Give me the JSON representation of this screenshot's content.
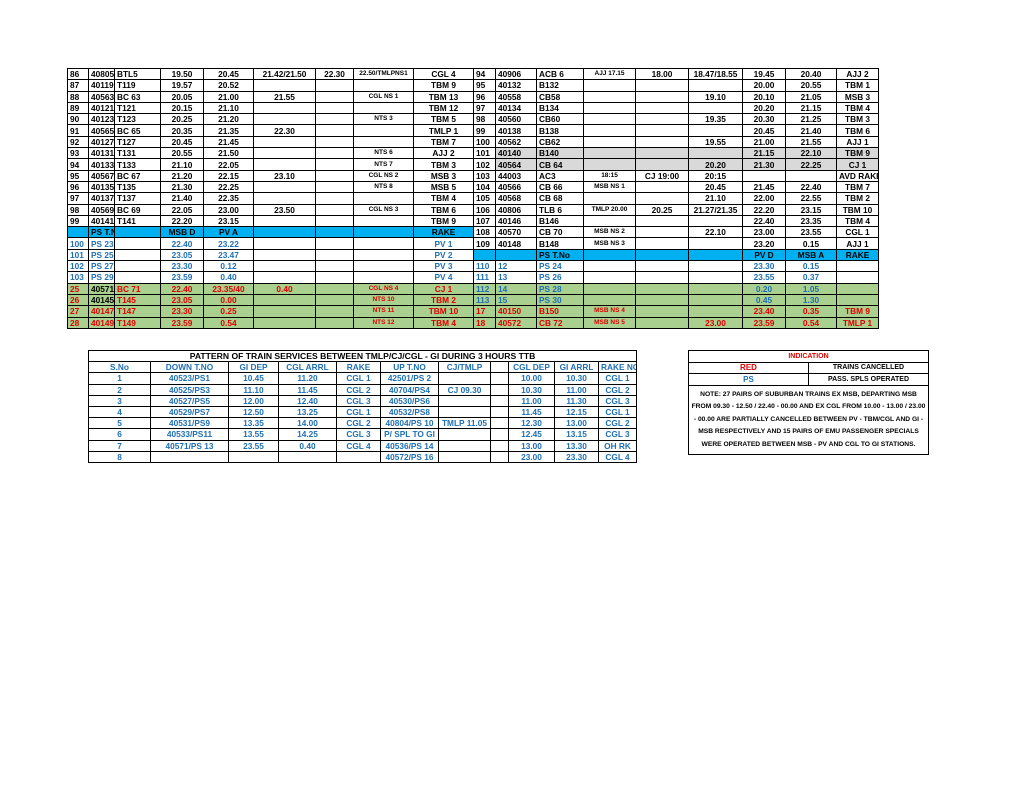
{
  "main_table": {
    "rows": [
      [
        "86",
        "40805",
        "BTL5",
        "19.50",
        "20.45",
        "21.42/21.50",
        "22.30",
        "22.50/TMLPNS1",
        "CGL 4",
        "94",
        "40906",
        "ACB 6",
        "AJJ 17.15",
        "18.00",
        "18.47/18.55",
        "19.45",
        "20.40",
        "AJJ 2"
      ],
      [
        "87",
        "40119",
        "T119",
        "19.57",
        "20.52",
        null,
        null,
        null,
        "TBM 9",
        "95",
        "40132",
        "B132",
        null,
        null,
        null,
        "20.00",
        "20.55",
        "TBM 1"
      ],
      [
        "88",
        "40563",
        "BC 63",
        "20.05",
        "21.00",
        "21.55",
        null,
        "CGL NS 1",
        "TBM 13",
        "96",
        "40558",
        "CB58",
        null,
        null,
        "19.10",
        "20.10",
        "21.05",
        "MSB 3"
      ],
      [
        "89",
        "40121",
        "T121",
        "20.15",
        "21.10",
        null,
        null,
        null,
        "TBM 12",
        "97",
        "40134",
        "B134",
        null,
        null,
        null,
        "20.20",
        "21.15",
        "TBM 4"
      ],
      [
        "90",
        "40123",
        "T123",
        "20.25",
        "21.20",
        null,
        null,
        "NTS 3",
        "TBM 5",
        "98",
        "40560",
        "CB60",
        null,
        null,
        "19.35",
        "20.30",
        "21.25",
        "TBM 3"
      ],
      [
        "91",
        "40565",
        "BC 65",
        "20.35",
        "21.35",
        "22.30",
        null,
        null,
        "TMLP 1",
        "99",
        "40138",
        "B138",
        null,
        null,
        null,
        "20.45",
        "21.40",
        "TBM 6"
      ],
      [
        "92",
        "40127",
        "T127",
        "20.45",
        "21.45",
        null,
        null,
        null,
        "TBM 7",
        "100",
        "40562",
        "CB62",
        null,
        null,
        "19.55",
        "21.00",
        "21.55",
        "AJJ 1"
      ],
      [
        "93",
        "40131",
        "T131",
        "20.55",
        "21.50",
        null,
        null,
        "NTS 6",
        "AJJ 2",
        "101",
        "40140",
        "B140",
        null,
        null,
        null,
        "21.15",
        "22.10",
        "TBM 9"
      ],
      [
        "94",
        "40133",
        "T133",
        "21.10",
        "22.05",
        null,
        null,
        "NTS 7",
        "TBM 3",
        "102",
        "40564",
        "CB 64",
        null,
        null,
        "20.20",
        "21.30",
        "22.25",
        "CJ 1"
      ],
      [
        "95",
        "40567",
        "BC 67",
        "21.20",
        "22.15",
        "23.10",
        null,
        "CGL NS 2",
        "MSB 3",
        "103",
        "44003",
        "AC3",
        "18:15",
        "CJ 19:00",
        "20:15",
        null,
        null,
        "AVD RAKE"
      ],
      [
        "96",
        "40135",
        "T135",
        "21.30",
        "22.25",
        null,
        null,
        "NTS 8",
        "MSB 5",
        "104",
        "40566",
        "CB 66",
        "MSB NS 1",
        null,
        "20.45",
        "21.45",
        "22.40",
        "TBM 7"
      ],
      [
        "97",
        "40137",
        "T137",
        "21.40",
        "22.35",
        null,
        null,
        null,
        "TBM 4",
        "105",
        "40568",
        "CB 68",
        null,
        null,
        "21.10",
        "22.00",
        "22.55",
        "TBM 2"
      ],
      [
        "98",
        "40569",
        "BC 69",
        "22.05",
        "23.00",
        "23.50",
        null,
        "CGL NS 3",
        "TBM 6",
        "106",
        "40806",
        "TLB 6",
        "TMLP 20.00",
        "20.25",
        "21.27/21.35",
        "22.20",
        "23.15",
        "TBM 10"
      ],
      [
        "99",
        "40141",
        "T141",
        "22.20",
        "23.15",
        null,
        null,
        null,
        "TBM 9",
        "107",
        "40146",
        "B146",
        null,
        null,
        null,
        "22.40",
        "23.35",
        "TBM 4"
      ],
      [
        null,
        "PS T.No",
        null,
        "MSB D",
        "PV A",
        null,
        null,
        null,
        "RAKE",
        "108",
        "40570",
        "CB 70",
        "MSB NS 2",
        null,
        "22.10",
        "23.00",
        "23.55",
        "CGL 1"
      ],
      [
        "100",
        "PS 23",
        null,
        "22.40",
        "23.22",
        null,
        null,
        null,
        "PV 1",
        "109",
        "40148",
        "B148",
        "MSB NS 3",
        null,
        null,
        "23.20",
        "0.15",
        "AJJ 1"
      ],
      [
        "101",
        "PS 25",
        null,
        "23.05",
        "23.47",
        null,
        null,
        null,
        "PV 2",
        null,
        null,
        "PS T.No",
        null,
        null,
        null,
        "PV  D",
        "MSB A",
        "RAKE"
      ],
      [
        "102",
        "PS 27",
        null,
        "23.30",
        "0.12",
        null,
        null,
        null,
        "PV 3",
        "110",
        "12",
        "PS 24",
        null,
        null,
        null,
        "23.30",
        "0.15",
        null
      ],
      [
        "103",
        "PS 29",
        null,
        "23.59",
        "0.40",
        null,
        null,
        null,
        "PV 4",
        "111",
        "13",
        "PS 26",
        null,
        null,
        null,
        "23.55",
        "0.37",
        null
      ],
      [
        "25",
        "40571",
        "BC 71",
        "22.40",
        "23.35/40",
        "0.40",
        null,
        "CGL NS 4",
        "CJ 1",
        "112",
        "14",
        "PS 28",
        null,
        null,
        null,
        "0.20",
        "1.05",
        null
      ],
      [
        "26",
        "40145",
        "T145",
        "23.05",
        "0.00",
        null,
        null,
        "NTS 10",
        "TBM 2",
        "113",
        "15",
        "PS 30",
        null,
        null,
        null,
        "0.45",
        "1.30",
        null
      ],
      [
        "27",
        "40147",
        "T147",
        "23.30",
        "0.25",
        null,
        null,
        "NTS 11",
        "TBM 10",
        "17",
        "40150",
        "B150",
        "MSB NS 4",
        null,
        null,
        "23.40",
        "0.35",
        "TBM 9"
      ],
      [
        "28",
        "40149",
        "T149",
        "23.59",
        "0.54",
        null,
        null,
        "NTS 12",
        "TBM 4",
        "18",
        "40572",
        "CB 72",
        "MSB NS 5",
        null,
        "23.00",
        "23.59",
        "0.54",
        "TMLP 1"
      ]
    ]
  },
  "pattern_table": {
    "title": "PATTERN OF TRAIN SERVICES BETWEEN TMLP/CJ/CGL - GI DURING 3 HOURS TTB",
    "header": [
      "S.No",
      "DOWN T.NO",
      "GI DEP",
      "CGL ARRL",
      "RAKE",
      "UP T.NO",
      "CJ/TMLP",
      null,
      "CGL DEP",
      "GI ARRL",
      "RAKE NO"
    ],
    "rows": [
      [
        "1",
        "40523/PS1",
        "10.45",
        "11.20",
        "CGL 1",
        "42501/PS 2",
        null,
        null,
        "10.00",
        "10.30",
        "CGL 1"
      ],
      [
        "2",
        "40525/PS3",
        "11.10",
        "11.45",
        "CGL 2",
        "40704/PS4",
        "CJ 09.30",
        null,
        "10.30",
        "11.00",
        "CGL 2"
      ],
      [
        "3",
        "40527/PS5",
        "12.00",
        "12.40",
        "CGL 3",
        "40530/PS6",
        null,
        null,
        "11.00",
        "11.30",
        "CGL 3"
      ],
      [
        "4",
        "40529/PS7",
        "12.50",
        "13.25",
        "CGL 1",
        "40532/PS8",
        null,
        null,
        "11.45",
        "12.15",
        "CGL 1"
      ],
      [
        "5",
        "40531/PS9",
        "13.35",
        "14.00",
        "CGL 2",
        "40804/PS 10",
        "TMLP 11.05",
        null,
        "12.30",
        "13.00",
        "CGL 2"
      ],
      [
        "6",
        "40533/PS11",
        "13.55",
        "14.25",
        "CGL 3",
        "P/ SPL TO GI",
        null,
        null,
        "12.45",
        "13.15",
        "CGL 3"
      ],
      [
        "7",
        "40571/PS 13",
        "23.55",
        "0.40",
        "CGL 4",
        "40536/PS 14",
        null,
        null,
        "13.00",
        "13.30",
        "OH RK"
      ],
      [
        "8",
        null,
        null,
        null,
        null,
        "40572/PS 16",
        null,
        null,
        "23.00",
        "23.30",
        "CGL 4"
      ]
    ]
  },
  "indication": {
    "title": "INDICATION",
    "rows": [
      [
        "RED",
        "TRAINS CANCELLED"
      ],
      [
        "PS",
        "PASS. SPLS OPERATED"
      ]
    ],
    "note": "NOTE: 27 PAIRS OF SUBURBAN TRAINS EX MSB, DEPARTING MSB FROM 09.30 - 12.50 / 22.40 - 00.00 AND EX CGL FROM 10.00 - 13.00 / 23.00 - 00.00 ARE PARTIALLY CANCELLED BETWEEN PV - TBM/CGL AND GI - MSB RESPECTIVELY AND 15 PAIRS OF EMU PASSENGER SPECIALS WERE OPERATED BETWEEN MSB - PV AND CGL TO GI STATIONS."
  }
}
